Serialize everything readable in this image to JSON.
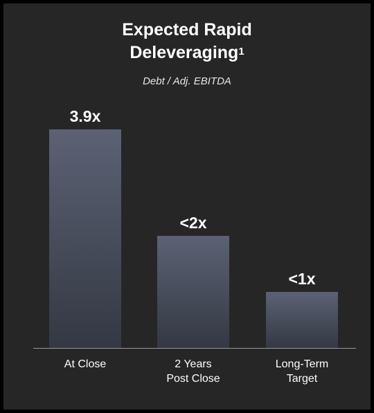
{
  "chart_data": {
    "type": "bar",
    "title_main_line1": "Expected Rapid",
    "title_main_line2": "Deleveraging",
    "title_footnote": "1",
    "subtitle": "Debt / Adj. EBITDA",
    "categories": [
      [
        "At Close"
      ],
      [
        "2 Years",
        "Post Close"
      ],
      [
        "Long-Term",
        "Target"
      ]
    ],
    "values": [
      3.9,
      2.0,
      1.0
    ],
    "data_labels": [
      "3.9x",
      "<2x",
      "<1x"
    ],
    "ylim": [
      0,
      3.9
    ],
    "grid": false,
    "legend": "none",
    "colors": {
      "background": "#262626",
      "frame": "#000000",
      "bar_top": "#5b6274",
      "bar_bottom": "#343843",
      "axis": "#9a9a9a",
      "text": "#ffffff"
    }
  }
}
